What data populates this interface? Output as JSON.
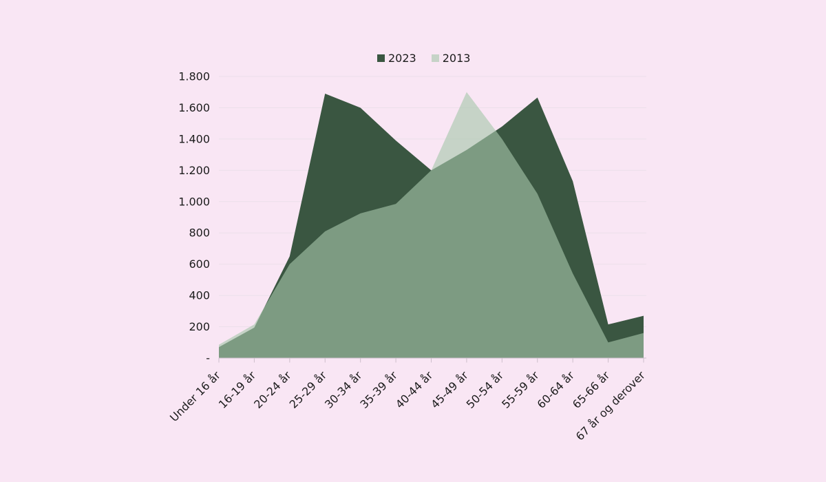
{
  "chart_data": {
    "type": "area",
    "title": "",
    "categories": [
      "Under 16 år",
      "16-19 år",
      "20-24 år",
      "25-29 år",
      "30-34 år",
      "35-39 år",
      "40-44 år",
      "45-49 år",
      "50-54 år",
      "55-59 år",
      "60-64 år",
      "65-66 år",
      "67 år og derover"
    ],
    "series": [
      {
        "name": "2023",
        "color": "#3A5641",
        "fill_opacity": 1,
        "values": [
          70,
          195,
          650,
          1690,
          1600,
          1390,
          1200,
          1330,
          1480,
          1665,
          1130,
          215,
          270
        ]
      },
      {
        "name": "2013",
        "color": "#A7C7AB",
        "fill_opacity": 0.62,
        "values": [
          85,
          215,
          600,
          810,
          925,
          985,
          1200,
          1700,
          1400,
          1050,
          540,
          100,
          160
        ]
      }
    ],
    "xlabel": "",
    "ylabel": "",
    "ylim": [
      0,
      1800
    ],
    "ytick_step": 200,
    "ytick_labels": [
      "-",
      "200",
      "400",
      "600",
      "800",
      "1.000",
      "1.200",
      "1.400",
      "1.600",
      "1.800"
    ],
    "grid": true,
    "legend_position": "top-center"
  },
  "colors": {
    "background": "#F9E6F4",
    "gridline": "#ECDFEA",
    "axis_line": "#CDBECB",
    "text": "#1C1C1C"
  }
}
